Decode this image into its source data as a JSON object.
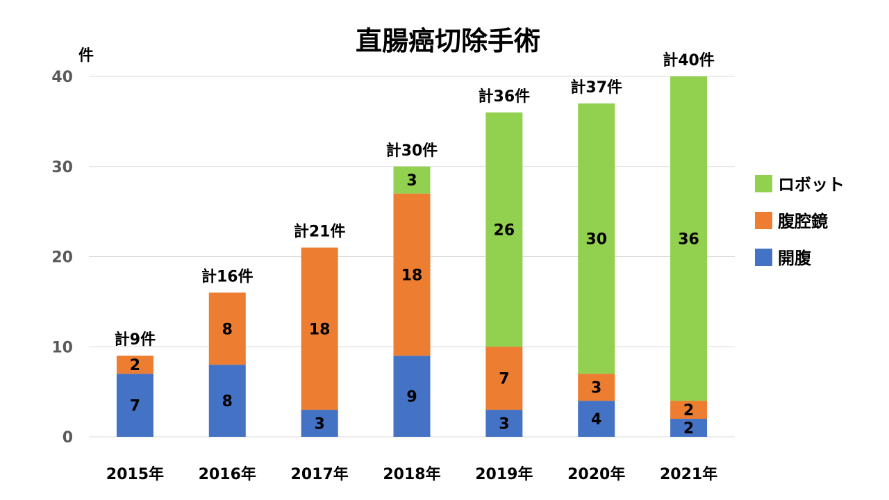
{
  "chart_data": {
    "type": "bar",
    "stacked": true,
    "title": "直腸癌切除手術",
    "ylabel": "件",
    "xlabel": "",
    "ylim": [
      0,
      40
    ],
    "yticks": [
      0,
      10,
      20,
      30,
      40
    ],
    "grid": true,
    "legend_position": "right",
    "categories": [
      "2015年",
      "2016年",
      "2017年",
      "2018年",
      "2019年",
      "2020年",
      "2021年"
    ],
    "series": [
      {
        "name": "開腹",
        "color": "#4472C4",
        "values": [
          7,
          8,
          3,
          9,
          3,
          4,
          2
        ]
      },
      {
        "name": "腹腔鏡",
        "color": "#ED7D31",
        "values": [
          2,
          8,
          18,
          18,
          7,
          3,
          2
        ]
      },
      {
        "name": "ロボット",
        "color": "#92D050",
        "values": [
          0,
          0,
          0,
          3,
          26,
          30,
          36
        ]
      }
    ],
    "totals": [
      "計9件",
      "計16件",
      "計21件",
      "計30件",
      "計36件",
      "計37件",
      "計40件"
    ]
  }
}
